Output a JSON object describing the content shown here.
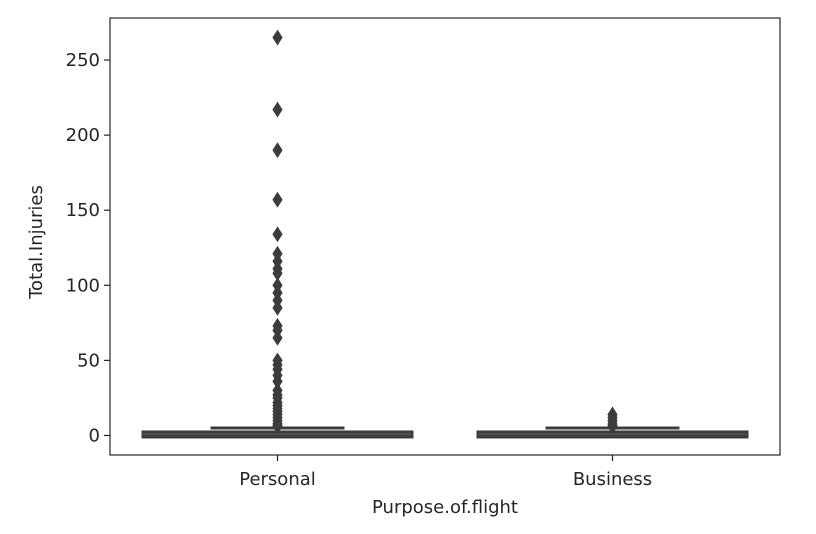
{
  "chart_data": {
    "type": "box",
    "xlabel": "Purpose.of.flight",
    "ylabel": "Total.Injuries",
    "categories": [
      "Personal",
      "Business"
    ],
    "ylim": [
      -13,
      278
    ],
    "yticks": [
      0,
      50,
      100,
      150,
      200,
      250
    ],
    "grid": false,
    "box_color": "#3c3c3c",
    "boxes": [
      {
        "category": "Personal",
        "q1": 0,
        "median": 1,
        "q3": 2,
        "whisker_low": 0,
        "whisker_high": 5,
        "outliers": [
          265,
          217,
          190,
          157,
          134,
          121,
          116,
          111,
          108,
          100,
          95,
          90,
          85,
          73,
          70,
          65,
          50,
          47,
          44,
          40,
          36,
          30,
          27,
          25,
          22,
          20,
          18,
          16,
          14,
          12,
          10,
          8,
          7,
          6
        ]
      },
      {
        "category": "Business",
        "q1": 0,
        "median": 1,
        "q3": 2,
        "whisker_low": 0,
        "whisker_high": 5,
        "outliers": [
          14,
          12,
          10,
          8,
          7,
          6
        ]
      }
    ]
  }
}
